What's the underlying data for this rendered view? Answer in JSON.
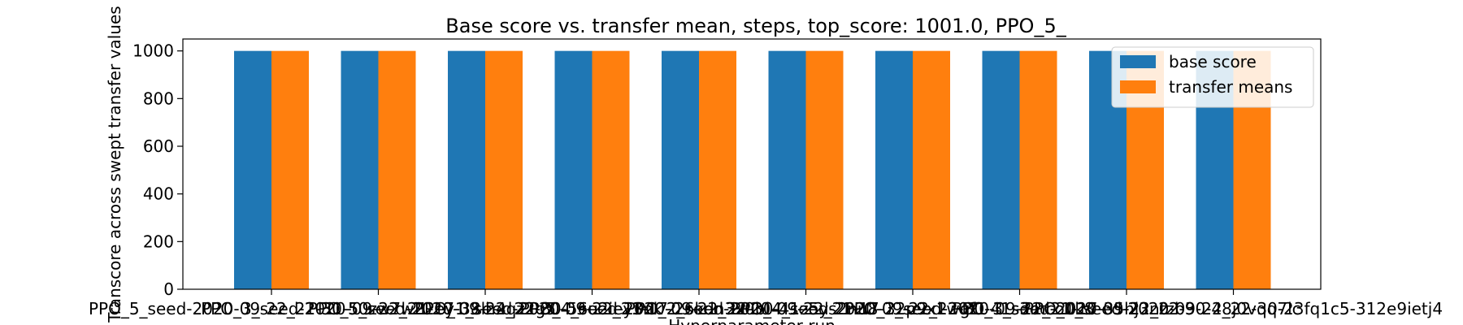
{
  "chart_data": {
    "type": "bar",
    "title": "Base score vs. transfer mean, steps, top_score: 1001.0, PPO_5_",
    "xlabel": "Hyperparameter run",
    "ylabel": "Transcore across swept transfer values",
    "ylim": [
      0,
      1050
    ],
    "yticks": [
      0,
      200,
      400,
      600,
      800,
      1000
    ],
    "grid": false,
    "legend_position": "top-right",
    "categories": [
      "PPO_5_seed-2020-09-22_22-30-50zw7w22ey",
      "PPO_3_seed-2020-09-22_21-17-38lh4qz2g5",
      "PPO_5_seed-2020-09-22_22-30-56u2iey3nk",
      "PPO_1_seed-2020-09-22_21-17-26kdn3x0bl",
      "PPO_4_seed-2020-09-22_22-30-41z5ys2nu8",
      "PPO_2_seed-2020-09-22_21-17-32p9x1wgf1",
      "PPO_4_seed-2020-09-22_22-30-41s3mco0k8",
      "PPO_2_seed-2020-09-22_21-17-35hj3ntzb9",
      "PPO_3_seed-2020-09-22_22-30-48j0vqq7lc",
      "PPO_1_seed-2020-09-22_22-30-23fq1c5-312e9ietj4"
    ],
    "series": [
      {
        "name": "base score",
        "color": "#1f77b4",
        "values": [
          1000,
          1000,
          1000,
          1000,
          1000,
          1000,
          1000,
          1000,
          1000,
          1000
        ]
      },
      {
        "name": "transfer means",
        "color": "#ff7f0e",
        "values": [
          1000,
          1000,
          1000,
          1000,
          1000,
          1000,
          1000,
          1000,
          1000,
          1000
        ]
      }
    ]
  }
}
